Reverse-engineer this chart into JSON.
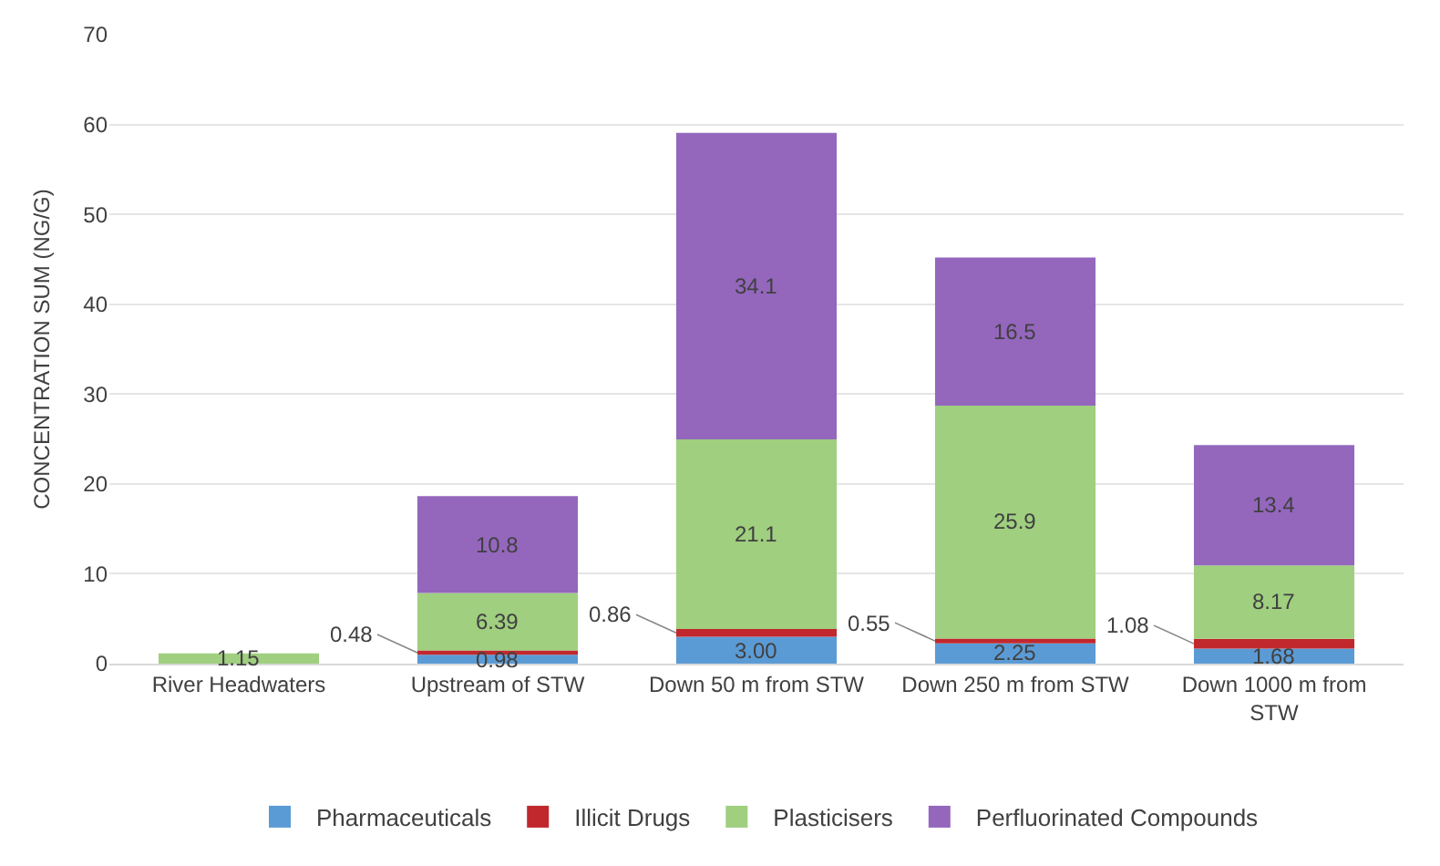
{
  "chart_data": {
    "type": "bar",
    "stacked": true,
    "ylabel": "CONCENTRATION SUM (NG/G)",
    "categories": [
      "River Headwaters",
      "Upstream of STW",
      "Down 50 m from STW",
      "Down 250 m from STW",
      "Down 1000 m from STW"
    ],
    "series": [
      {
        "name": "Pharmaceuticals",
        "color": "#5b9bd5",
        "values": [
          null,
          0.98,
          3.0,
          2.25,
          1.68
        ],
        "value_labels": [
          null,
          "0.98",
          "3.00",
          "2.25",
          "1.68"
        ]
      },
      {
        "name": "Illicit Drugs",
        "color": "#c0282d",
        "values": [
          null,
          0.48,
          0.86,
          0.55,
          1.08
        ],
        "value_labels": [
          null,
          "0.48",
          "0.86",
          "0.55",
          "1.08"
        ]
      },
      {
        "name": "Plasticisers",
        "color": "#9fcf7f",
        "values": [
          1.15,
          6.39,
          21.1,
          25.9,
          8.17
        ],
        "value_labels": [
          "1.15",
          "6.39",
          "21.1",
          "25.9",
          "8.17"
        ]
      },
      {
        "name": "Perfluorinated Compounds",
        "color": "#9467bd",
        "values": [
          null,
          10.8,
          34.1,
          16.5,
          13.4
        ],
        "value_labels": [
          null,
          "10.8",
          "34.1",
          "16.5",
          "13.4"
        ]
      }
    ],
    "ylim": [
      0,
      70
    ],
    "yticks": [
      0,
      10,
      20,
      30,
      40,
      50,
      60,
      70
    ],
    "grid": "y",
    "legend": "bottom"
  }
}
